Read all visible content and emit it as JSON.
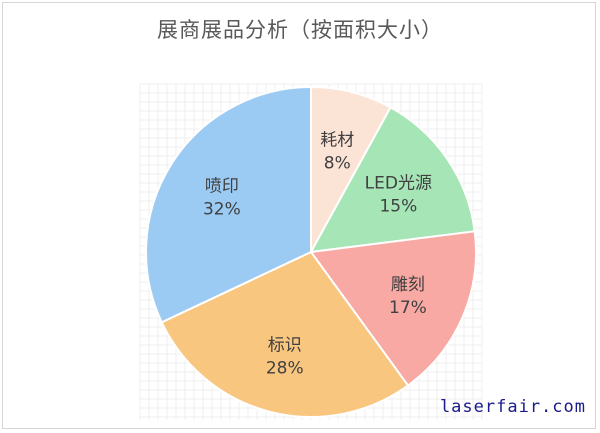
{
  "chart_data": {
    "type": "pie",
    "title": "展商展品分析（按面积大小）",
    "slices": [
      {
        "label": "耗材",
        "value": 8,
        "value_label": "8%",
        "color": "#fbe3d6"
      },
      {
        "label": "LED光源",
        "value": 15,
        "value_label": "15%",
        "color": "#a5e5b6"
      },
      {
        "label": "雕刻",
        "value": 17,
        "value_label": "17%",
        "color": "#f9a9a4"
      },
      {
        "label": "标识",
        "value": 28,
        "value_label": "28%",
        "color": "#f9c680"
      },
      {
        "label": "喷印",
        "value": 32,
        "value_label": "32%",
        "color": "#9bcaf3"
      }
    ],
    "legend": "none",
    "grid": true
  },
  "footer": {
    "brand": "laserfair.com"
  }
}
